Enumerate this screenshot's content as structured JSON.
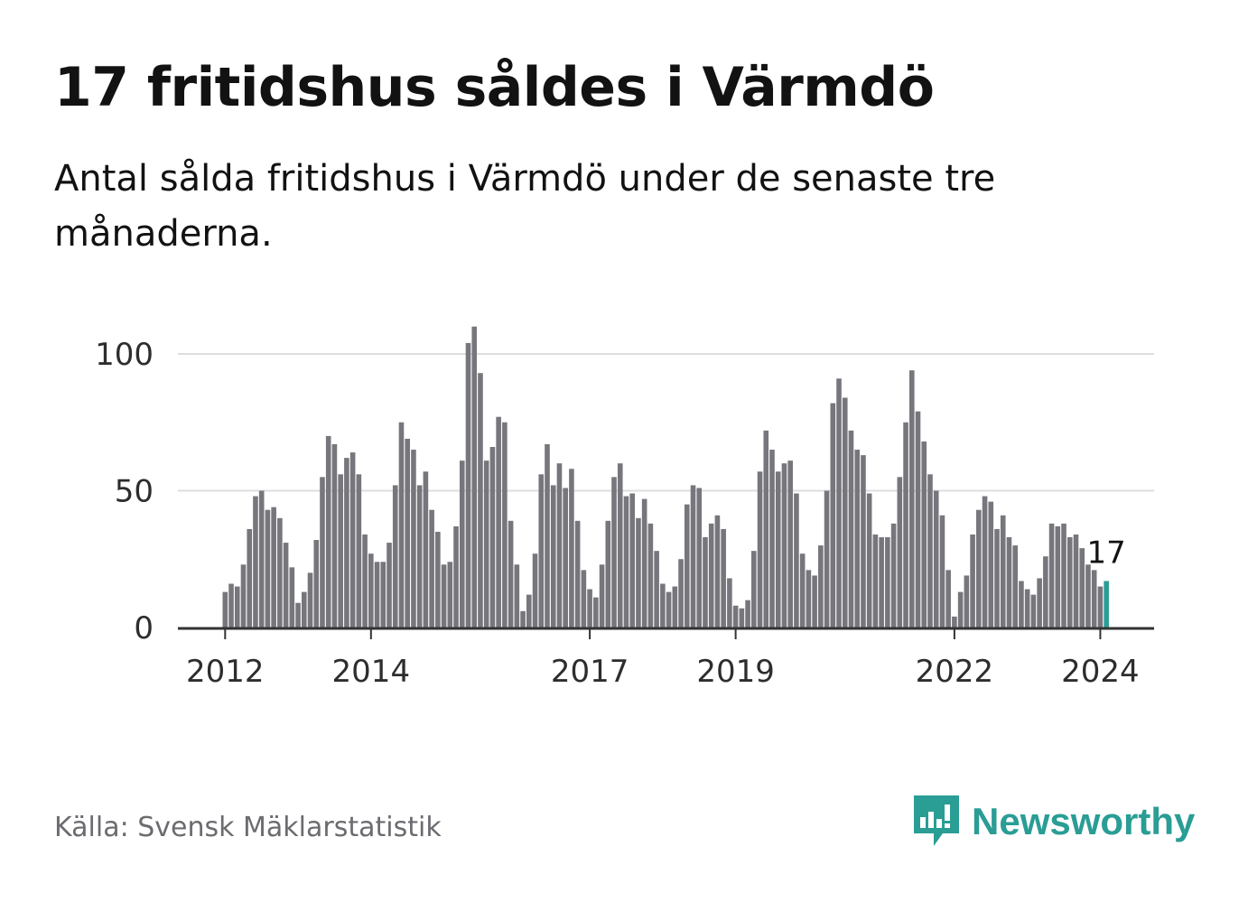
{
  "title": "17 fritidshus såldes i Värmdö",
  "subtitle": "Antal sålda fritidshus i Värmdö under de senaste tre månaderna.",
  "source": "Källa: Svensk Mäklarstatistik",
  "brand": "Newsworthy",
  "colors": {
    "bar": "#76767c",
    "highlight": "#2a9d95",
    "grid": "#dedede",
    "axis": "#333333",
    "text": "#121212",
    "muted": "#6b6b70"
  },
  "chart_data": {
    "type": "bar",
    "title": "17 fritidshus såldes i Värmdö",
    "xlabel": "",
    "ylabel": "",
    "ylim": [
      0,
      110
    ],
    "yticks": [
      0,
      50,
      100
    ],
    "grid": true,
    "start": "2012-01",
    "xtick_labels": [
      {
        "label": "2012",
        "index": 0
      },
      {
        "label": "2014",
        "index": 24
      },
      {
        "label": "2017",
        "index": 60
      },
      {
        "label": "2019",
        "index": 84
      },
      {
        "label": "2022",
        "index": 120
      },
      {
        "label": "2024",
        "index": 144
      }
    ],
    "values": [
      13,
      16,
      15,
      23,
      36,
      48,
      50,
      43,
      44,
      40,
      31,
      22,
      9,
      13,
      20,
      32,
      55,
      70,
      67,
      56,
      62,
      64,
      56,
      34,
      27,
      24,
      24,
      31,
      52,
      75,
      69,
      65,
      52,
      57,
      43,
      35,
      23,
      24,
      37,
      61,
      104,
      110,
      93,
      61,
      66,
      77,
      75,
      39,
      23,
      6,
      12,
      27,
      56,
      67,
      52,
      60,
      51,
      58,
      39,
      21,
      14,
      11,
      23,
      39,
      55,
      60,
      48,
      49,
      40,
      47,
      38,
      28,
      16,
      13,
      15,
      25,
      45,
      52,
      51,
      33,
      38,
      41,
      36,
      18,
      8,
      7,
      10,
      28,
      57,
      72,
      65,
      57,
      60,
      61,
      49,
      27,
      21,
      19,
      30,
      50,
      82,
      91,
      84,
      72,
      65,
      63,
      49,
      34,
      33,
      33,
      38,
      55,
      75,
      94,
      79,
      68,
      56,
      50,
      41,
      21,
      4,
      13,
      19,
      34,
      43,
      48,
      46,
      36,
      41,
      33,
      30,
      17,
      14,
      12,
      18,
      26,
      38,
      37,
      38,
      33,
      34,
      29,
      23,
      21,
      15,
      17
    ],
    "highlight_label": "17",
    "highlight_index": 145
  }
}
